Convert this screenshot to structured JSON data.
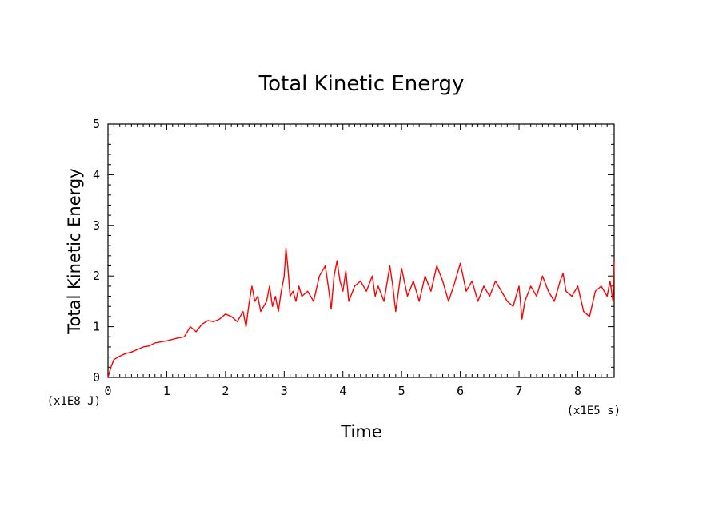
{
  "chart_data": {
    "type": "line",
    "title": "Total Kinetic Energy",
    "xlabel": "Time",
    "ylabel": "Total Kinetic Energy",
    "x_multiplier": "(x1E5 s)",
    "y_multiplier": "(x1E8 J)",
    "xlim": [
      0,
      8.62
    ],
    "ylim": [
      0,
      5
    ],
    "x_ticks": [
      "0",
      "1",
      "2",
      "3",
      "4",
      "5",
      "6",
      "7",
      "8"
    ],
    "y_ticks": [
      "0",
      "1",
      "2",
      "3",
      "4",
      "5"
    ],
    "grid": false,
    "colors": {
      "series": "#ff0000",
      "axes": "#000000",
      "background": "#ffffff"
    },
    "series": [
      {
        "x": [
          0,
          0.05,
          0.1,
          0.2,
          0.3,
          0.4,
          0.5,
          0.6,
          0.7,
          0.8,
          0.9,
          1.0,
          1.1,
          1.2,
          1.3,
          1.35,
          1.4,
          1.5,
          1.6,
          1.7,
          1.8,
          1.9,
          2.0,
          2.1,
          2.2,
          2.3,
          2.35,
          2.4,
          2.45,
          2.5,
          2.55,
          2.6,
          2.7,
          2.75,
          2.8,
          2.85,
          2.9,
          2.95,
          3.0,
          3.03,
          3.06,
          3.1,
          3.15,
          3.2,
          3.25,
          3.3,
          3.4,
          3.5,
          3.6,
          3.7,
          3.75,
          3.8,
          3.85,
          3.9,
          3.95,
          4.0,
          4.05,
          4.1,
          4.2,
          4.3,
          4.4,
          4.5,
          4.55,
          4.6,
          4.7,
          4.8,
          4.85,
          4.9,
          5.0,
          5.1,
          5.2,
          5.3,
          5.4,
          5.5,
          5.6,
          5.7,
          5.8,
          5.9,
          6.0,
          6.1,
          6.2,
          6.3,
          6.4,
          6.5,
          6.6,
          6.7,
          6.8,
          6.9,
          7.0,
          7.05,
          7.1,
          7.2,
          7.3,
          7.4,
          7.5,
          7.6,
          7.7,
          7.75,
          7.8,
          7.9,
          8.0,
          8.1,
          8.2,
          8.3,
          8.4,
          8.5,
          8.55,
          8.6,
          8.62
        ],
        "y": [
          0,
          0.2,
          0.35,
          0.42,
          0.47,
          0.5,
          0.55,
          0.6,
          0.62,
          0.68,
          0.7,
          0.72,
          0.75,
          0.78,
          0.8,
          0.9,
          1.0,
          0.9,
          1.05,
          1.12,
          1.1,
          1.15,
          1.25,
          1.2,
          1.1,
          1.3,
          1.0,
          1.45,
          1.8,
          1.5,
          1.6,
          1.3,
          1.5,
          1.8,
          1.4,
          1.6,
          1.3,
          1.7,
          2.0,
          2.55,
          2.2,
          1.6,
          1.7,
          1.5,
          1.8,
          1.6,
          1.7,
          1.5,
          2.0,
          2.2,
          1.8,
          1.35,
          2.0,
          2.3,
          1.9,
          1.7,
          2.1,
          1.5,
          1.8,
          1.9,
          1.7,
          2.0,
          1.6,
          1.8,
          1.5,
          2.2,
          1.8,
          1.3,
          2.15,
          1.6,
          1.9,
          1.5,
          2.0,
          1.7,
          2.2,
          1.9,
          1.5,
          1.85,
          2.25,
          1.7,
          1.9,
          1.5,
          1.8,
          1.6,
          1.9,
          1.7,
          1.5,
          1.4,
          1.8,
          1.15,
          1.5,
          1.8,
          1.6,
          2.0,
          1.7,
          1.5,
          1.9,
          2.05,
          1.7,
          1.6,
          1.8,
          1.3,
          1.2,
          1.7,
          1.8,
          1.6,
          1.9,
          1.5,
          2.3
        ]
      }
    ]
  }
}
